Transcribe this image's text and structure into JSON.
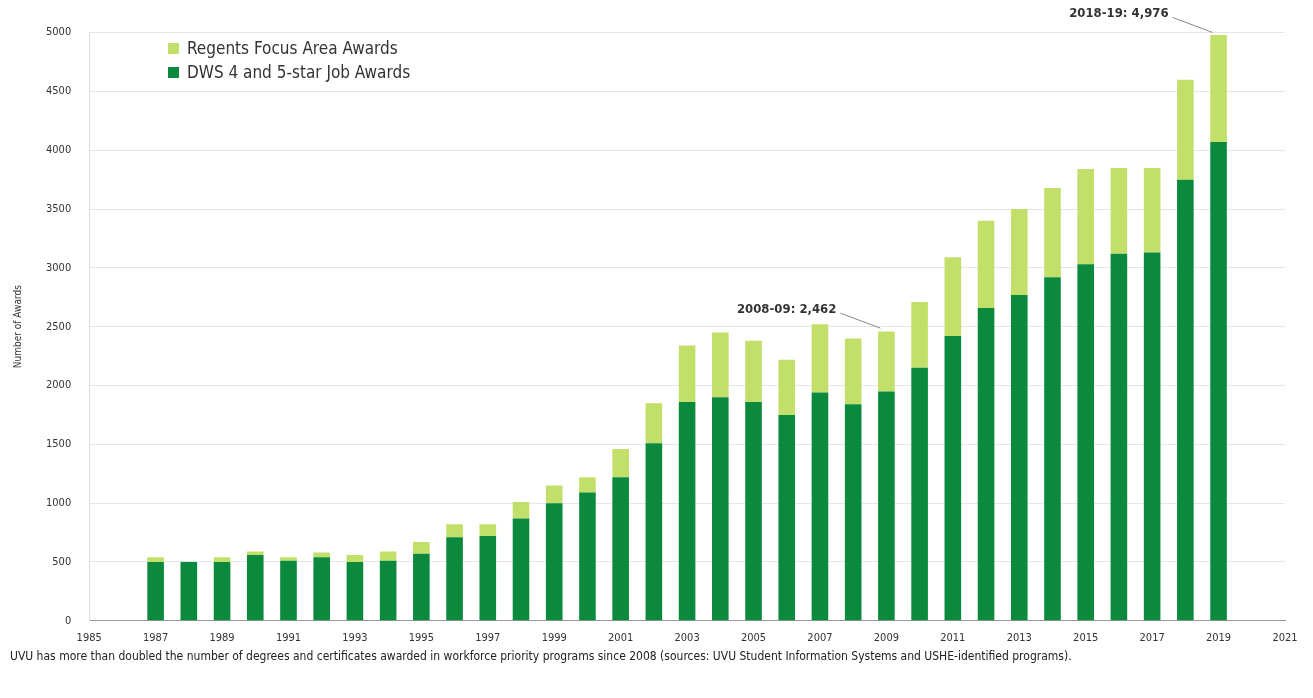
{
  "chart_data": {
    "type": "bar",
    "stacked": true,
    "ylabel": "Number of Awards",
    "x": [
      1987,
      1988,
      1989,
      1990,
      1991,
      1992,
      1993,
      1994,
      1995,
      1996,
      1997,
      1998,
      1999,
      2000,
      2001,
      2002,
      2003,
      2004,
      2005,
      2006,
      2007,
      2008,
      2009,
      2010,
      2011,
      2012,
      2013,
      2014,
      2015,
      2016,
      2017,
      2018,
      2019
    ],
    "series": [
      {
        "name": "DWS 4 and 5-star Job Awards",
        "color": "#0b8a3e",
        "values": [
          500,
          500,
          500,
          560,
          510,
          540,
          500,
          510,
          570,
          710,
          720,
          870,
          1000,
          1090,
          1220,
          1510,
          1860,
          1900,
          1860,
          1750,
          1940,
          1840,
          1950,
          2150,
          2420,
          2660,
          2770,
          2920,
          3030,
          3120,
          3130,
          3750,
          4070
        ]
      },
      {
        "name": "Regents Focus Area Awards",
        "color": "#c2e069",
        "values": [
          40,
          null,
          40,
          30,
          30,
          40,
          60,
          80,
          100,
          110,
          100,
          140,
          150,
          130,
          240,
          340,
          480,
          550,
          520,
          470,
          580,
          560,
          510,
          560,
          670,
          740,
          730,
          760,
          810,
          730,
          720,
          850,
          910
        ]
      }
    ],
    "xlim": [
      1985,
      2021
    ],
    "xticks": [
      1985,
      1987,
      1989,
      1991,
      1993,
      1995,
      1997,
      1999,
      2001,
      2003,
      2005,
      2007,
      2009,
      2011,
      2013,
      2015,
      2017,
      2019,
      2021
    ],
    "ylim": [
      0,
      5000
    ],
    "yticks": [
      0,
      500,
      1000,
      1500,
      2000,
      2500,
      3000,
      3500,
      4000,
      4500,
      5000
    ],
    "grid": "y",
    "legend": "top left",
    "annotations": [
      {
        "text": "2008-09: 2,462",
        "x": 2009,
        "y": 2462
      },
      {
        "text": "2018-19: 4,976",
        "x": 2019,
        "y": 4976
      },
      "UVU has more than doubled the number of degrees and certificates awarded in workforce priority programs since 2008 (sources: UVU Student Information Systems and USHE-identified programs)."
    ]
  }
}
